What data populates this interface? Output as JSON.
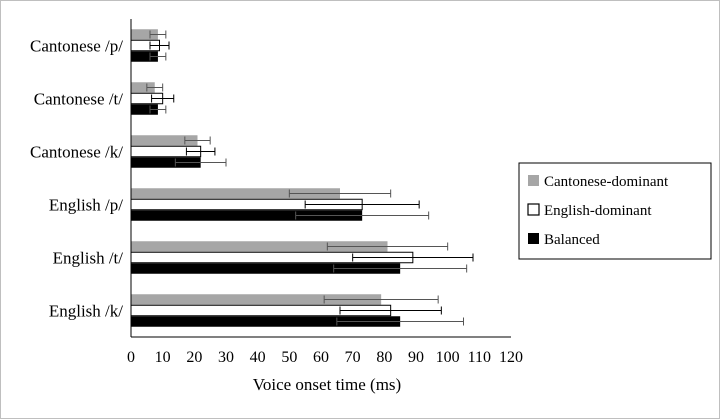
{
  "chart_data": {
    "type": "bar",
    "orientation": "horizontal",
    "categories": [
      "Cantonese /p/",
      "Cantonese /t/",
      "Cantonese /k/",
      "English /p/",
      "English /t/",
      "English /k/"
    ],
    "series": [
      {
        "name": "Cantonese-dominant",
        "color": "#a6a6a6",
        "values": [
          8.5,
          7.5,
          21,
          66,
          81,
          79
        ],
        "error": [
          2.5,
          2.5,
          4,
          16,
          19,
          18
        ]
      },
      {
        "name": "English-dominant",
        "color": "#ffffff",
        "values": [
          9,
          10,
          22,
          73,
          89,
          82
        ],
        "error": [
          3,
          3.5,
          4.5,
          18,
          19,
          16
        ]
      },
      {
        "name": "Balanced",
        "color": "#000000",
        "values": [
          8.5,
          8.5,
          22,
          73,
          85,
          85
        ],
        "error": [
          2.5,
          2.5,
          8,
          21,
          21,
          20
        ]
      }
    ],
    "xlabel": "Voice onset time  (ms)",
    "xlim": [
      0,
      120
    ],
    "xticks": [
      "0",
      "10",
      "20",
      "30",
      "40",
      "50",
      "60",
      "70",
      "80",
      "90",
      "100",
      "110",
      "120"
    ],
    "grid": false,
    "legend_position": "right"
  }
}
